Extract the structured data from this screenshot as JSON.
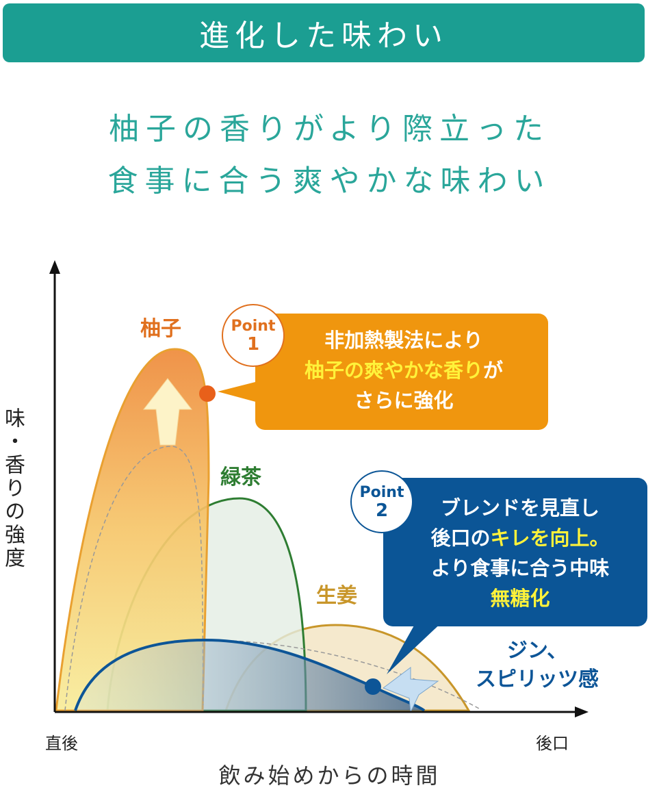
{
  "banner": {
    "title": "進化した味わい"
  },
  "subtitle": {
    "line1": "柚子の香りがより際立った",
    "line2": "食事に合う爽やかな味わい"
  },
  "diagram": {
    "y_axis_label": "味・香りの強度",
    "x_axis_label": "飲み始めからの時間",
    "x_start": "直後",
    "x_end": "後口",
    "curves": [
      {
        "name": "柚子",
        "color": "#e0701e"
      },
      {
        "name": "緑茶",
        "color": "#2e7d32"
      },
      {
        "name": "生姜",
        "color": "#c8962a"
      },
      {
        "name": "ジン、スピリッツ感",
        "line1": "ジン、",
        "line2": "スピリッツ感",
        "color": "#0d5597"
      }
    ],
    "point1": {
      "badge_word": "Point",
      "badge_num": "1",
      "line1": "非加熱製法により",
      "line2_highlight": "柚子の爽やかな香り",
      "line2_rest": "が",
      "line3": "さらに強化",
      "color": "#f0960e"
    },
    "point2": {
      "badge_word": "Point",
      "badge_num": "2",
      "line1": "ブレンドを見直し",
      "line2_pre": "後口の",
      "line2_highlight": "キレを向上。",
      "line3": "より食事に合う中味",
      "line4_highlight": "無糖化",
      "color": "#0b5596"
    },
    "highlight_color": "#fff23a"
  }
}
